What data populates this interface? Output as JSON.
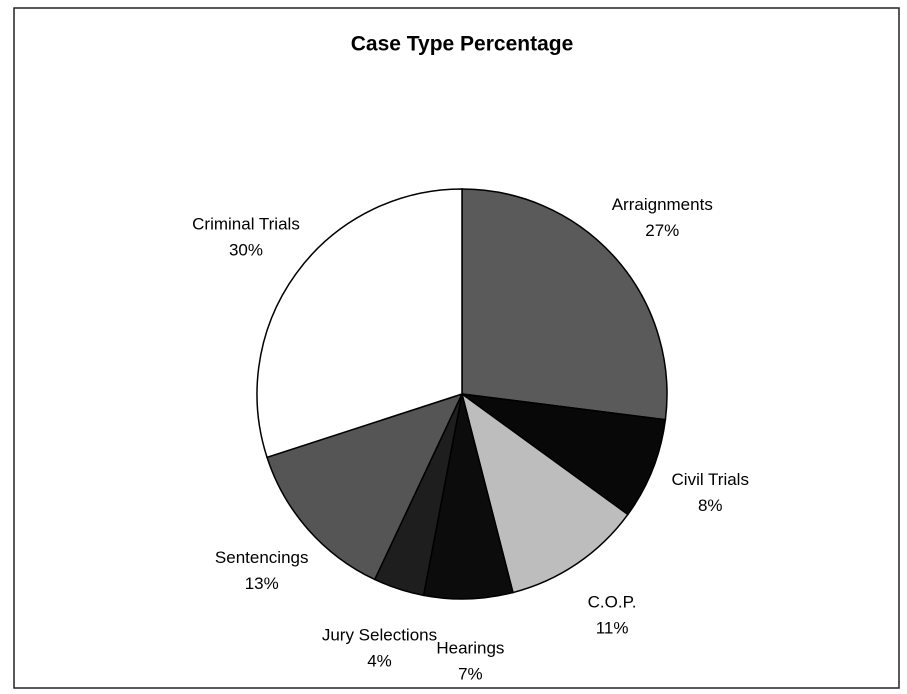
{
  "chart_data": {
    "type": "pie",
    "title": "Case Type Percentage",
    "categories": [
      "Arraignments",
      "Civil Trials",
      "C.O.P.",
      "Hearings",
      "Jury Selections",
      "Sentencings",
      "Criminal Trials"
    ],
    "values": [
      27,
      8,
      11,
      7,
      4,
      13,
      30
    ],
    "value_labels": [
      "27%",
      "8%",
      "11%",
      "7%",
      "4%",
      "13%",
      "30%"
    ],
    "colors": [
      "#5a5a5a",
      "#080808",
      "#bdbdbd",
      "#0c0c0c",
      "#1e1e1e",
      "#555555",
      "#ffffff"
    ]
  }
}
